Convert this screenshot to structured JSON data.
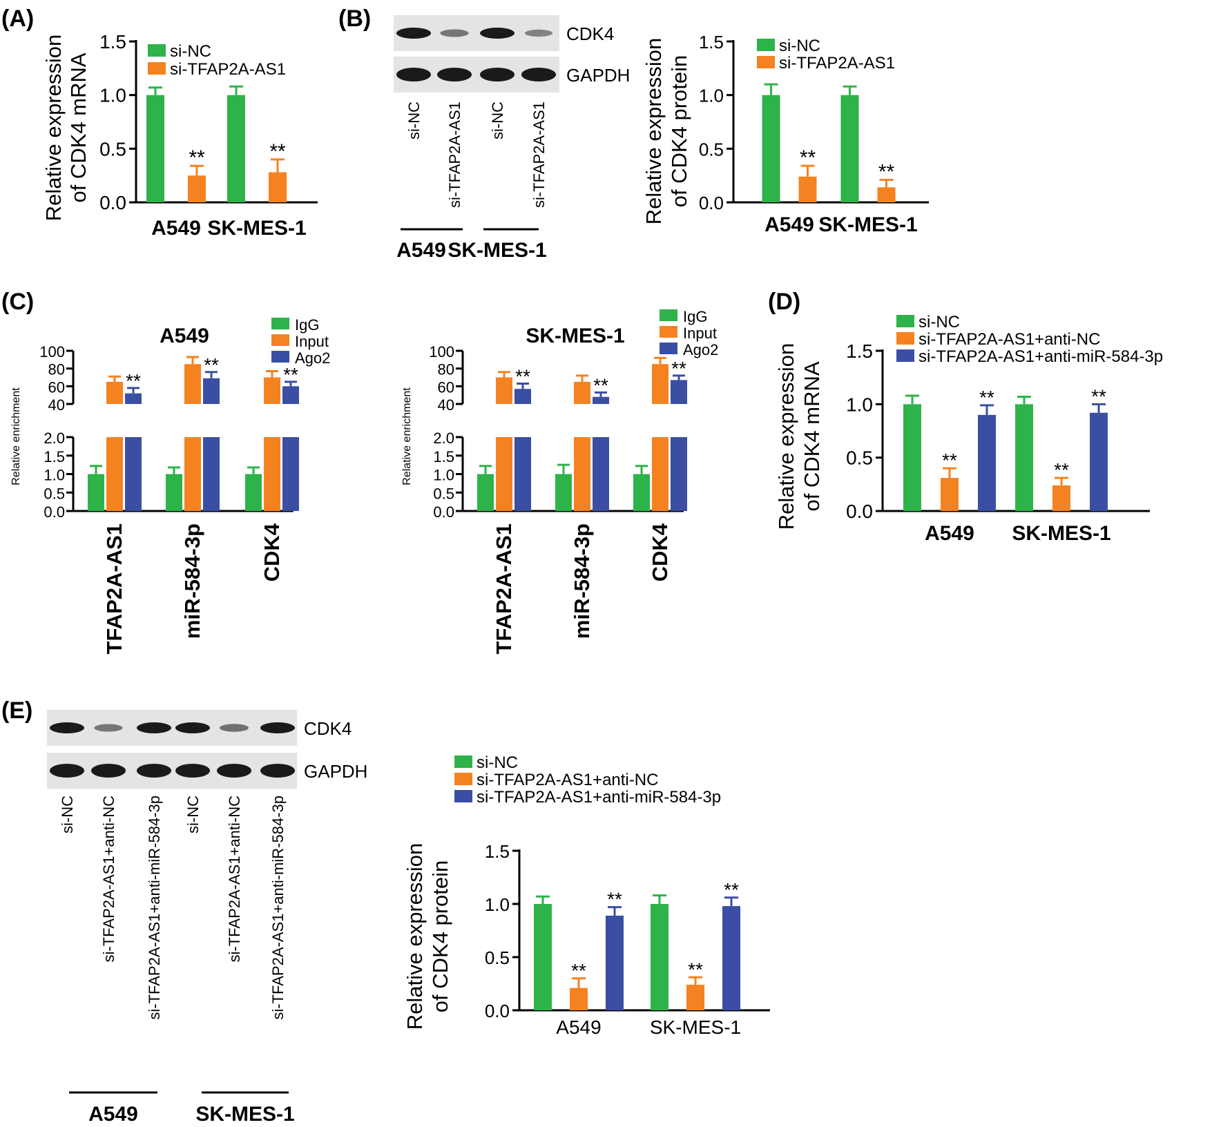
{
  "colors": {
    "green": "#2db34a",
    "orange": "#f58220",
    "blue": "#3a4fa3",
    "band": "#1a1a1a",
    "blot_bg": "#e4e4e4"
  },
  "panel_labels": {
    "a": "(A)",
    "b": "(B)",
    "c": "(C)",
    "d": "(D)",
    "e": "(E)"
  },
  "blots": {
    "b": {
      "rows": [
        "CDK4",
        "GAPDH"
      ],
      "lanes": [
        "si-NC",
        "si-TFAP2A-AS1",
        "si-NC",
        "si-TFAP2A-AS1"
      ],
      "groups": [
        "A549",
        "SK-MES-1"
      ],
      "cdk4_intensity": [
        1.0,
        0.3,
        1.0,
        0.2
      ],
      "gapdh_intensity": [
        1.0,
        1.0,
        1.0,
        1.0
      ]
    },
    "e": {
      "rows": [
        "CDK4",
        "GAPDH"
      ],
      "lanes": [
        "si-NC",
        "si-TFAP2A-AS1+anti-NC",
        "si-TFAP2A-AS1+anti-miR-584-3p",
        "si-NC",
        "si-TFAP2A-AS1+anti-NC",
        "si-TFAP2A-AS1+anti-miR-584-3p"
      ],
      "groups": [
        "A549",
        "SK-MES-1"
      ],
      "cdk4_intensity": [
        1.0,
        0.3,
        1.0,
        1.0,
        0.35,
        1.0
      ],
      "gapdh_intensity": [
        1.0,
        1.0,
        1.0,
        1.0,
        1.0,
        1.0
      ]
    }
  },
  "chart_data": [
    {
      "id": "a",
      "type": "bar",
      "ylabel": [
        "Relative expression",
        "of CDK4 mRNA"
      ],
      "ylim": [
        0,
        1.5
      ],
      "yticks": [
        "0.0",
        "0.5",
        "1.0",
        "1.5"
      ],
      "categories": [
        "A549",
        "SK-MES-1"
      ],
      "series": [
        {
          "name": "si-NC",
          "color": "green",
          "values": [
            1.0,
            1.0
          ],
          "errors": [
            0.07,
            0.08
          ],
          "sig": [
            "",
            ""
          ]
        },
        {
          "name": "si-TFAP2A-AS1",
          "color": "orange",
          "values": [
            0.25,
            0.28
          ],
          "errors": [
            0.09,
            0.12
          ],
          "sig": [
            "**",
            "**"
          ]
        }
      ]
    },
    {
      "id": "b",
      "type": "bar",
      "ylabel": [
        "Relative expression",
        "of CDK4 protein"
      ],
      "ylim": [
        0,
        1.5
      ],
      "yticks": [
        "0.0",
        "0.5",
        "1.0",
        "1.5"
      ],
      "categories": [
        "A549",
        "SK-MES-1"
      ],
      "series": [
        {
          "name": "si-NC",
          "color": "green",
          "values": [
            1.0,
            1.0
          ],
          "errors": [
            0.1,
            0.08
          ],
          "sig": [
            "",
            ""
          ]
        },
        {
          "name": "si-TFAP2A-AS1",
          "color": "orange",
          "values": [
            0.24,
            0.14
          ],
          "errors": [
            0.1,
            0.07
          ],
          "sig": [
            "**",
            "**"
          ]
        }
      ]
    },
    {
      "id": "c1",
      "type": "bar",
      "title": "A549",
      "ylabel": [
        "Relative enrichment"
      ],
      "broken_axis": {
        "lower": [
          0,
          2.0
        ],
        "upper": [
          40,
          100
        ]
      },
      "lower_ticks": [
        "0.0",
        "0.5",
        "1.0",
        "1.5",
        "2.0"
      ],
      "upper_ticks": [
        "40",
        "60",
        "80",
        "100"
      ],
      "categories": [
        "TFAP2A-AS1",
        "miR-584-3p",
        "CDK4"
      ],
      "series": [
        {
          "name": "IgG",
          "color": "green",
          "values": [
            1.0,
            1.0,
            1.0
          ],
          "errors": [
            0.22,
            0.18,
            0.18
          ],
          "sig": [
            "",
            "",
            ""
          ]
        },
        {
          "name": "Input",
          "color": "orange",
          "values": [
            65,
            85,
            70
          ],
          "errors": [
            6,
            8,
            7
          ],
          "sig": [
            "",
            "",
            ""
          ]
        },
        {
          "name": "Ago2",
          "color": "blue",
          "values": [
            52,
            69,
            60
          ],
          "errors": [
            6,
            7,
            5
          ],
          "sig": [
            "**",
            "**",
            "**"
          ]
        }
      ]
    },
    {
      "id": "c2",
      "type": "bar",
      "title": "SK-MES-1",
      "ylabel": [
        "Relative enrichment"
      ],
      "broken_axis": {
        "lower": [
          0,
          2.0
        ],
        "upper": [
          40,
          100
        ]
      },
      "lower_ticks": [
        "0.0",
        "0.5",
        "1.0",
        "1.5",
        "2.0"
      ],
      "upper_ticks": [
        "40",
        "60",
        "80",
        "100"
      ],
      "categories": [
        "TFAP2A-AS1",
        "miR-584-3p",
        "CDK4"
      ],
      "series": [
        {
          "name": "IgG",
          "color": "green",
          "values": [
            1.0,
            1.0,
            1.0
          ],
          "errors": [
            0.22,
            0.25,
            0.22
          ],
          "sig": [
            "",
            "",
            ""
          ]
        },
        {
          "name": "Input",
          "color": "orange",
          "values": [
            70,
            65,
            85
          ],
          "errors": [
            6,
            7,
            7
          ],
          "sig": [
            "",
            "",
            ""
          ]
        },
        {
          "name": "Ago2",
          "color": "blue",
          "values": [
            57,
            48,
            67
          ],
          "errors": [
            6,
            5,
            5
          ],
          "sig": [
            "**",
            "**",
            "**"
          ]
        }
      ]
    },
    {
      "id": "d",
      "type": "bar",
      "ylabel": [
        "Relative expression",
        "of CDK4 mRNA"
      ],
      "ylim": [
        0,
        1.5
      ],
      "yticks": [
        "0.0",
        "0.5",
        "1.0",
        "1.5"
      ],
      "categories": [
        "A549",
        "SK-MES-1"
      ],
      "series": [
        {
          "name": "si-NC",
          "color": "green",
          "values": [
            1.0,
            1.0
          ],
          "errors": [
            0.08,
            0.07
          ],
          "sig": [
            "",
            ""
          ]
        },
        {
          "name": "si-TFAP2A-AS1+anti-NC",
          "color": "orange",
          "values": [
            0.31,
            0.24
          ],
          "errors": [
            0.09,
            0.07
          ],
          "sig": [
            "**",
            "**"
          ]
        },
        {
          "name": "si-TFAP2A-AS1+anti-miR-584-3p",
          "color": "blue",
          "values": [
            0.9,
            0.92
          ],
          "errors": [
            0.09,
            0.08
          ],
          "sig": [
            "**",
            "**"
          ]
        }
      ]
    },
    {
      "id": "e",
      "type": "bar",
      "ylabel": [
        "Relative expression",
        "of CDK4 protein"
      ],
      "ylim": [
        0,
        1.5
      ],
      "yticks": [
        "0.0",
        "0.5",
        "1.0",
        "1.5"
      ],
      "categories": [
        "A549",
        "SK-MES-1"
      ],
      "series": [
        {
          "name": "si-NC",
          "color": "green",
          "values": [
            1.0,
            1.0
          ],
          "errors": [
            0.07,
            0.08
          ],
          "sig": [
            "",
            ""
          ]
        },
        {
          "name": "si-TFAP2A-AS1+anti-NC",
          "color": "orange",
          "values": [
            0.21,
            0.24
          ],
          "errors": [
            0.09,
            0.07
          ],
          "sig": [
            "**",
            "**"
          ]
        },
        {
          "name": "si-TFAP2A-AS1+anti-miR-584-3p",
          "color": "blue",
          "values": [
            0.89,
            0.98
          ],
          "errors": [
            0.08,
            0.08
          ],
          "sig": [
            "**",
            "**"
          ]
        }
      ]
    }
  ]
}
